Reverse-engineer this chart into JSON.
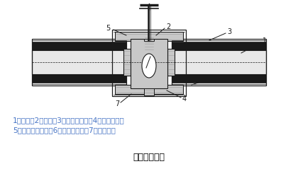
{
  "bg_color": "#ffffff",
  "title": "阀门保温结构",
  "legend_line1": "1、管道；2、阀门；3、管道保温层；4、绑扎钢带；",
  "legend_line2": "5、填充保温材料；6、镀锌铁丝网；7、保护层。",
  "label_color": "#4472c4",
  "title_color": "#000000",
  "dark_color": "#1a1a1a",
  "gray_color": "#808080",
  "light_gray": "#c8c8c8",
  "white": "#ffffff",
  "pipe_color": "#e8e8e8",
  "black_insul": "#1a1a1a",
  "mid_gray": "#a0a0a0"
}
